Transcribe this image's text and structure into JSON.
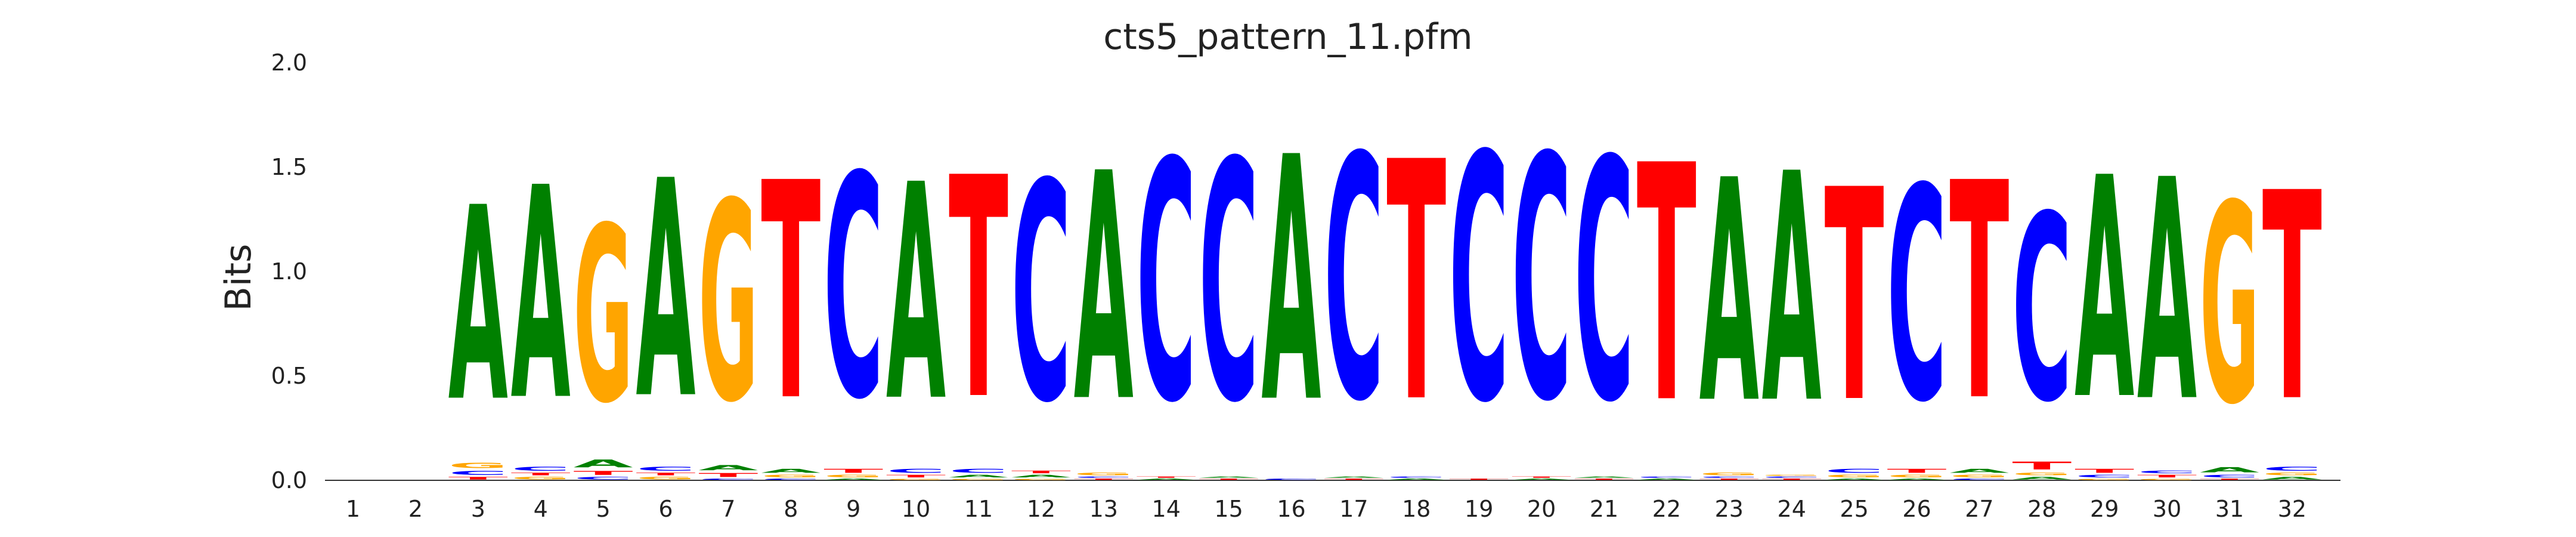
{
  "chart_data": {
    "type": "sequence-logo",
    "title": "cts5_pattern_11.pfm",
    "xlabel": "",
    "ylabel": "Bits",
    "ylim": [
      0,
      2.0
    ],
    "yticks": [
      "0.0",
      "0.5",
      "1.0",
      "1.5",
      "2.0"
    ],
    "grid": false,
    "legend": "none",
    "colors": {
      "A": "#008000",
      "C": "#0000ff",
      "G": "#ffa500",
      "T": "#ff0000"
    },
    "positions": [
      {
        "pos": "1",
        "stack": []
      },
      {
        "pos": "2",
        "stack": []
      },
      {
        "pos": "3",
        "stack": [
          [
            "T",
            0.02
          ],
          [
            "C",
            0.03
          ],
          [
            "G",
            0.04
          ],
          [
            "A",
            1.49
          ]
        ]
      },
      {
        "pos": "4",
        "stack": [
          [
            "G",
            0.02
          ],
          [
            "T",
            0.02
          ],
          [
            "C",
            0.03
          ],
          [
            "A",
            1.63
          ]
        ]
      },
      {
        "pos": "5",
        "stack": [
          [
            "C",
            0.02
          ],
          [
            "T",
            0.03
          ],
          [
            "A",
            0.06
          ],
          [
            "G",
            1.35
          ]
        ]
      },
      {
        "pos": "6",
        "stack": [
          [
            "G",
            0.02
          ],
          [
            "T",
            0.02
          ],
          [
            "C",
            0.03
          ],
          [
            "A",
            1.67
          ]
        ]
      },
      {
        "pos": "7",
        "stack": [
          [
            "C",
            0.01
          ],
          [
            "T",
            0.03
          ],
          [
            "A",
            0.04
          ],
          [
            "G",
            1.53
          ]
        ]
      },
      {
        "pos": "8",
        "stack": [
          [
            "C",
            0.01
          ],
          [
            "G",
            0.02
          ],
          [
            "A",
            0.03
          ],
          [
            "T",
            1.67
          ]
        ]
      },
      {
        "pos": "9",
        "stack": [
          [
            "A",
            0.01
          ],
          [
            "G",
            0.02
          ],
          [
            "T",
            0.03
          ],
          [
            "C",
            1.71
          ]
        ]
      },
      {
        "pos": "10",
        "stack": [
          [
            "G",
            0.01
          ],
          [
            "T",
            0.02
          ],
          [
            "C",
            0.03
          ],
          [
            "A",
            1.66
          ]
        ]
      },
      {
        "pos": "11",
        "stack": [
          [
            "G",
            0.01
          ],
          [
            "A",
            0.02
          ],
          [
            "C",
            0.03
          ],
          [
            "T",
            1.7
          ]
        ]
      },
      {
        "pos": "12",
        "stack": [
          [
            "G",
            0.01
          ],
          [
            "A",
            0.02
          ],
          [
            "T",
            0.02
          ],
          [
            "C",
            1.68
          ]
        ]
      },
      {
        "pos": "13",
        "stack": [
          [
            "T",
            0.01
          ],
          [
            "C",
            0.01
          ],
          [
            "G",
            0.02
          ],
          [
            "A",
            1.75
          ]
        ]
      },
      {
        "pos": "14",
        "stack": [
          [
            "A",
            0.01
          ],
          [
            "T",
            0.01
          ],
          [
            "C",
            1.84
          ]
        ]
      },
      {
        "pos": "15",
        "stack": [
          [
            "T",
            0.01
          ],
          [
            "A",
            0.01
          ],
          [
            "C",
            1.84
          ]
        ]
      },
      {
        "pos": "16",
        "stack": [
          [
            "C",
            0.01
          ],
          [
            "A",
            1.88
          ]
        ]
      },
      {
        "pos": "17",
        "stack": [
          [
            "T",
            0.01
          ],
          [
            "A",
            0.01
          ],
          [
            "C",
            1.87
          ]
        ]
      },
      {
        "pos": "18",
        "stack": [
          [
            "A",
            0.01
          ],
          [
            "C",
            0.01
          ],
          [
            "T",
            1.84
          ]
        ]
      },
      {
        "pos": "19",
        "stack": [
          [
            "T",
            0.01
          ],
          [
            "C",
            1.89
          ]
        ]
      },
      {
        "pos": "20",
        "stack": [
          [
            "A",
            0.01
          ],
          [
            "T",
            0.01
          ],
          [
            "C",
            1.87
          ]
        ]
      },
      {
        "pos": "21",
        "stack": [
          [
            "T",
            0.01
          ],
          [
            "A",
            0.01
          ],
          [
            "C",
            1.85
          ]
        ]
      },
      {
        "pos": "22",
        "stack": [
          [
            "A",
            0.01
          ],
          [
            "C",
            0.01
          ],
          [
            "T",
            1.82
          ]
        ]
      },
      {
        "pos": "23",
        "stack": [
          [
            "T",
            0.01
          ],
          [
            "C",
            0.01
          ],
          [
            "G",
            0.02
          ],
          [
            "A",
            1.71
          ]
        ]
      },
      {
        "pos": "24",
        "stack": [
          [
            "T",
            0.01
          ],
          [
            "C",
            0.01
          ],
          [
            "G",
            0.01
          ],
          [
            "A",
            1.76
          ]
        ]
      },
      {
        "pos": "25",
        "stack": [
          [
            "A",
            0.01
          ],
          [
            "G",
            0.02
          ],
          [
            "C",
            0.03
          ],
          [
            "T",
            1.63
          ]
        ]
      },
      {
        "pos": "26",
        "stack": [
          [
            "A",
            0.01
          ],
          [
            "G",
            0.02
          ],
          [
            "T",
            0.03
          ],
          [
            "C",
            1.64
          ]
        ]
      },
      {
        "pos": "27",
        "stack": [
          [
            "C",
            0.01
          ],
          [
            "G",
            0.02
          ],
          [
            "A",
            0.03
          ],
          [
            "T",
            1.67
          ]
        ]
      },
      {
        "pos": "28",
        "stack": [
          [
            "A",
            0.02
          ],
          [
            "G",
            0.02
          ],
          [
            "T",
            0.06
          ],
          [
            "C",
            1.43
          ]
        ]
      },
      {
        "pos": "29",
        "stack": [
          [
            "G",
            0.01
          ],
          [
            "C",
            0.02
          ],
          [
            "T",
            0.03
          ],
          [
            "A",
            1.7
          ]
        ]
      },
      {
        "pos": "30",
        "stack": [
          [
            "G",
            0.01
          ],
          [
            "T",
            0.02
          ],
          [
            "C",
            0.02
          ],
          [
            "A",
            1.7
          ]
        ]
      },
      {
        "pos": "31",
        "stack": [
          [
            "T",
            0.01
          ],
          [
            "C",
            0.02
          ],
          [
            "A",
            0.04
          ],
          [
            "G",
            1.53
          ]
        ]
      },
      {
        "pos": "32",
        "stack": [
          [
            "A",
            0.02
          ],
          [
            "G",
            0.02
          ],
          [
            "C",
            0.03
          ],
          [
            "T",
            1.6
          ]
        ]
      }
    ]
  }
}
